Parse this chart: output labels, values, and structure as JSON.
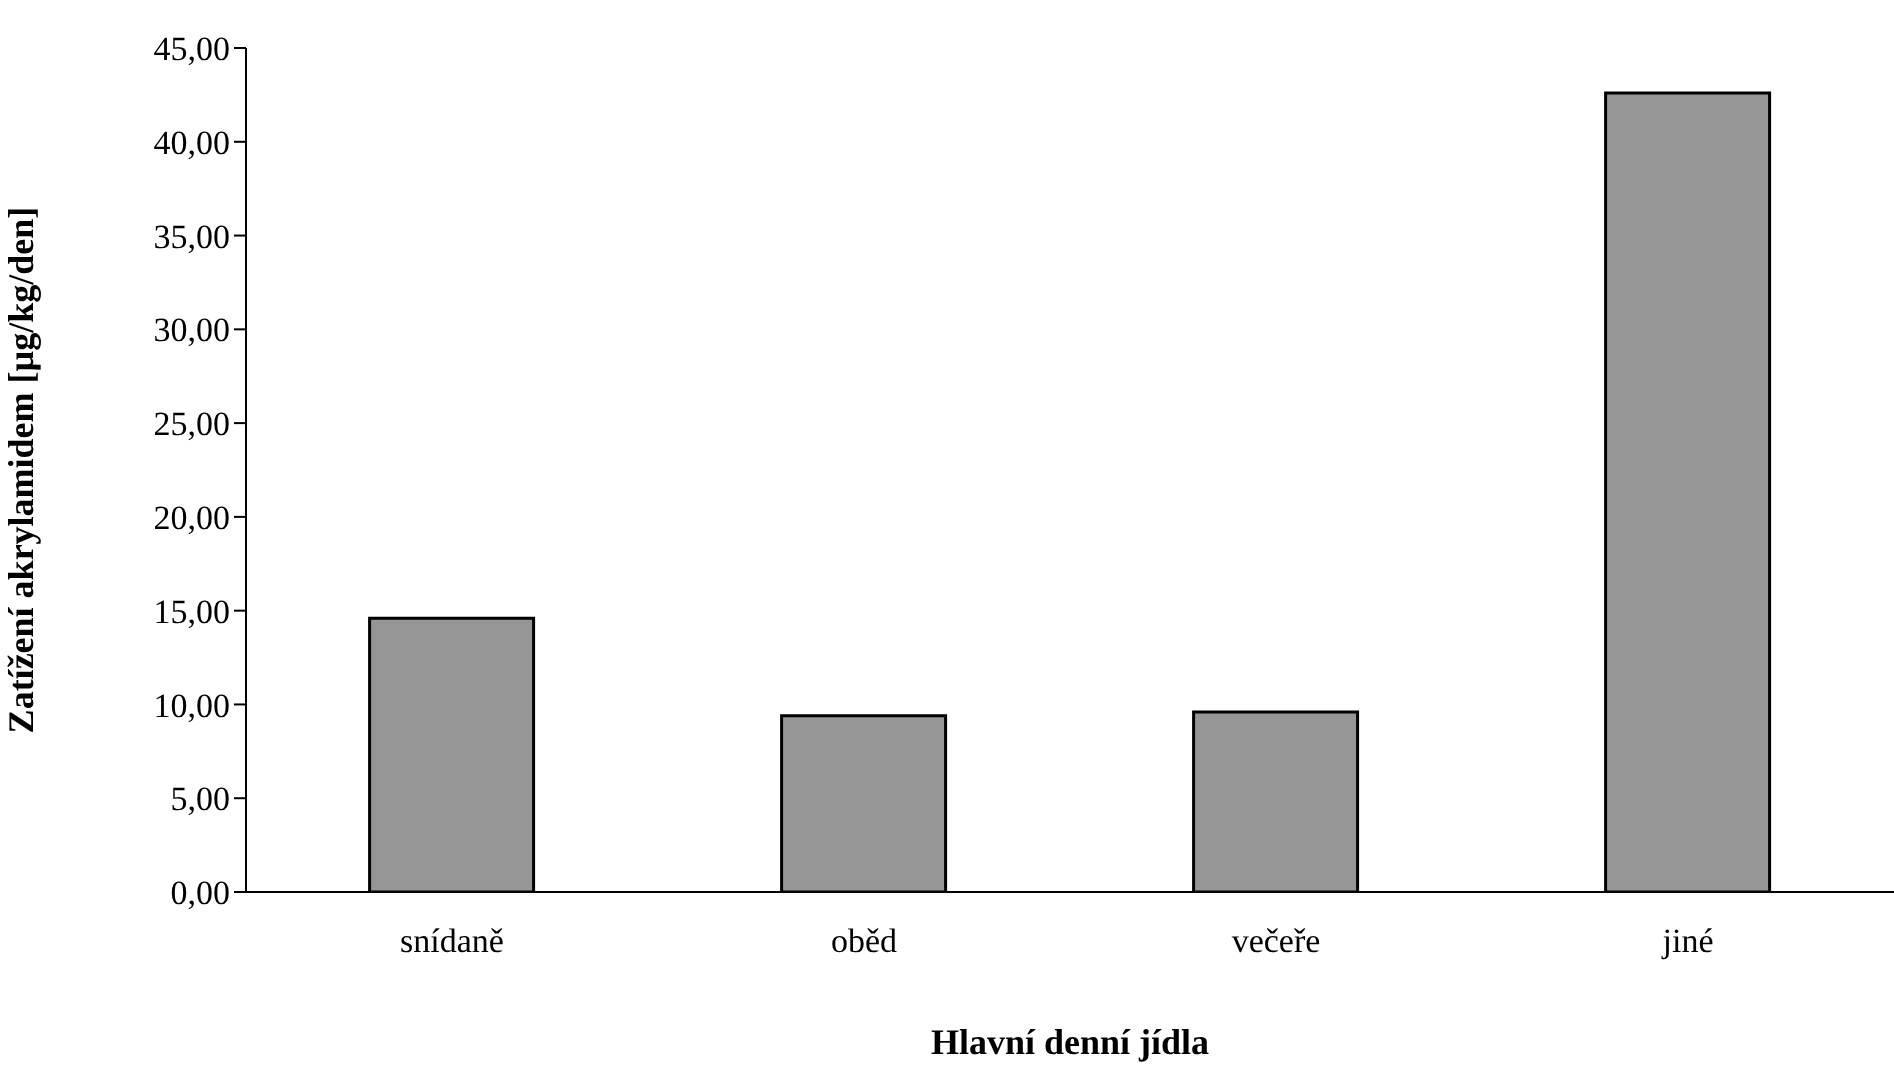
{
  "chart_data": {
    "type": "bar",
    "xlabel": "Hlavní denní jídla",
    "ylabel": "Zatížení akrylamidem [µg/kg/den]",
    "categories": [
      "snídaně",
      "oběd",
      "večeře",
      "jiné"
    ],
    "values": [
      14.6,
      9.4,
      9.6,
      42.6
    ],
    "color": "#969696",
    "ylim": [
      0,
      45
    ],
    "yticks": [
      {
        "value": 0,
        "label": "0,00"
      },
      {
        "value": 5,
        "label": "5,00"
      },
      {
        "value": 10,
        "label": "10,00"
      },
      {
        "value": 15,
        "label": "15,00"
      },
      {
        "value": 20,
        "label": "20,00"
      },
      {
        "value": 25,
        "label": "25,00"
      },
      {
        "value": 30,
        "label": "30,00"
      },
      {
        "value": 35,
        "label": "35,00"
      },
      {
        "value": 40,
        "label": "40,00"
      },
      {
        "value": 45,
        "label": "45,00"
      }
    ],
    "grid": false
  }
}
